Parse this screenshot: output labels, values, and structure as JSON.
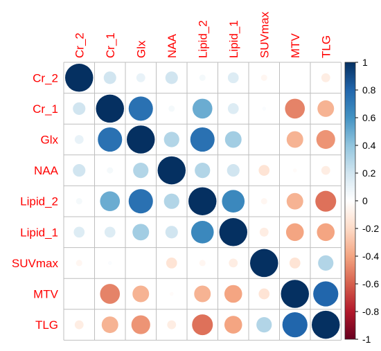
{
  "chart_data": {
    "type": "heatmap",
    "subtype": "correlation-circles",
    "variables": [
      "Cr_2",
      "Cr_1",
      "Glx",
      "NAA",
      "Lipid_2",
      "Lipid_1",
      "SUVmax",
      "MTV",
      "TLG"
    ],
    "matrix": [
      [
        1.0,
        0.2,
        0.1,
        0.2,
        0.05,
        0.15,
        -0.05,
        0.0,
        -0.1
      ],
      [
        0.2,
        1.0,
        0.75,
        0.05,
        0.5,
        0.15,
        0.02,
        -0.5,
        -0.35
      ],
      [
        0.1,
        0.75,
        1.0,
        0.3,
        0.75,
        0.35,
        0.0,
        -0.35,
        -0.45
      ],
      [
        0.2,
        0.05,
        0.3,
        1.0,
        0.3,
        0.2,
        -0.15,
        -0.02,
        -0.1
      ],
      [
        0.05,
        0.5,
        0.75,
        0.3,
        1.0,
        0.65,
        -0.05,
        -0.35,
        -0.55
      ],
      [
        0.15,
        0.15,
        0.35,
        0.2,
        0.65,
        1.0,
        -0.1,
        -0.4,
        -0.4
      ],
      [
        -0.05,
        0.02,
        0.0,
        -0.15,
        -0.05,
        -0.1,
        1.0,
        -0.15,
        0.3
      ],
      [
        0.0,
        -0.5,
        -0.35,
        -0.02,
        -0.35,
        -0.4,
        -0.15,
        1.0,
        0.8
      ],
      [
        -0.1,
        -0.35,
        -0.45,
        -0.1,
        -0.55,
        -0.4,
        0.3,
        0.8,
        1.0
      ]
    ],
    "color_scale": {
      "min": -1,
      "max": 1,
      "ticks": [
        "1",
        "0.8",
        "0.6",
        "0.4",
        "0.2",
        "0",
        "-0.2",
        "-0.4",
        "-0.6",
        "-0.8",
        "-1"
      ],
      "stops": [
        "#67001F",
        "#B2182B",
        "#D6604D",
        "#F4A582",
        "#FDDBC7",
        "#FFFFFF",
        "#D1E5F0",
        "#92C5DE",
        "#4393C3",
        "#2166AC",
        "#053061"
      ]
    },
    "label_color": "#FF0000",
    "grid_color": "#BEBEBE",
    "legend_position": "right"
  }
}
